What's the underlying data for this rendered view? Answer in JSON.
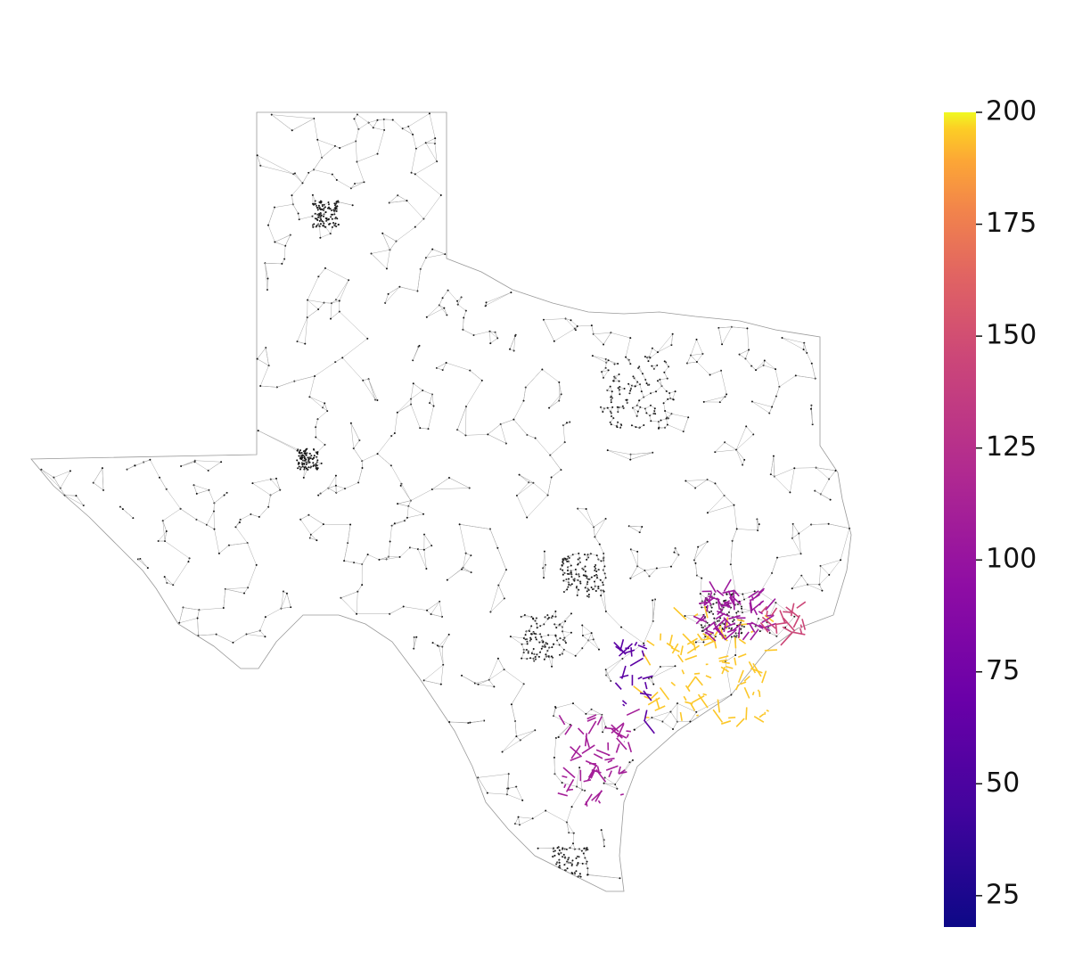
{
  "chart_data": {
    "type": "network-map",
    "edge_values": [
      195,
      105,
      60,
      110,
      145
    ],
    "colorbar": {
      "ylim": [
        18,
        200
      ],
      "yticks": [
        25,
        50,
        75,
        100,
        125,
        150,
        175,
        200
      ],
      "colormap": "plasma"
    }
  }
}
